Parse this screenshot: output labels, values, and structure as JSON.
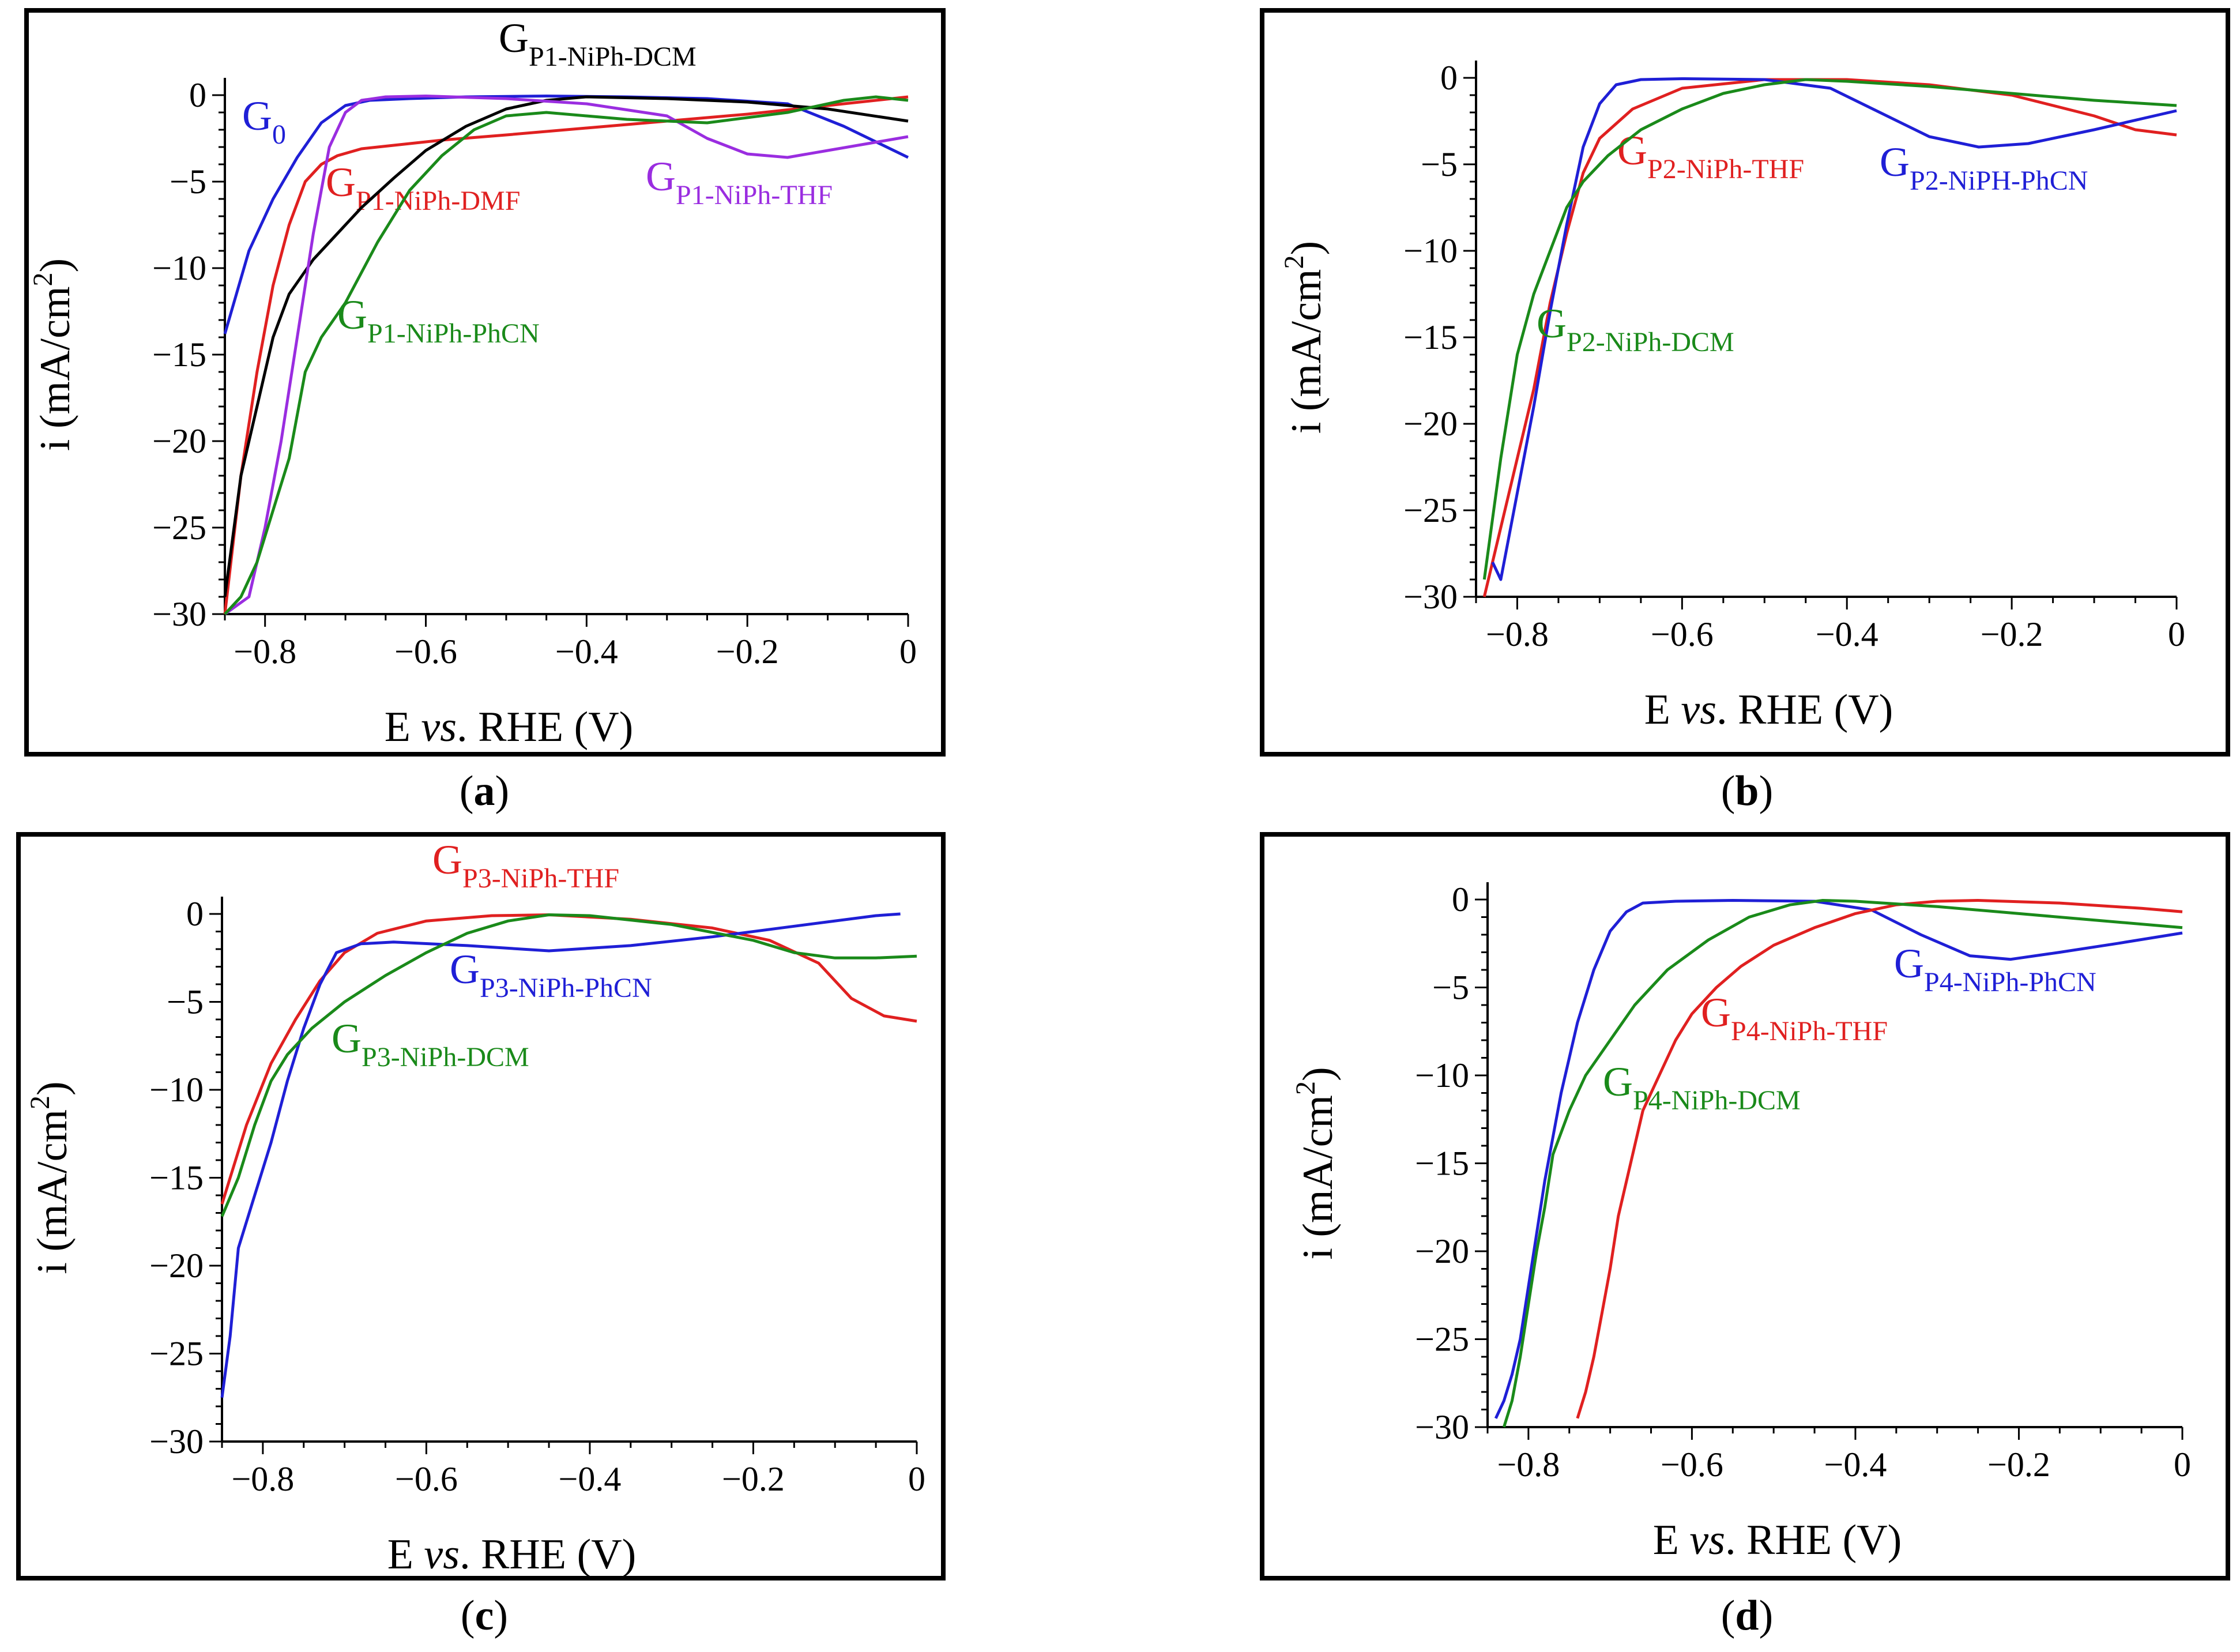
{
  "captions": [
    "a",
    "b",
    "c",
    "d"
  ],
  "axis_text": {
    "x_label_pre": "E ",
    "x_label_italic": "vs",
    "x_label_post": ". RHE (V)",
    "y_label_pre": "i (mA/cm",
    "y_label_sup": "2",
    "y_label_post": ")"
  },
  "colors": {
    "blue": "#1f1fd6",
    "red": "#e02020",
    "green": "#1a8a1a",
    "purple": "#9a2de0",
    "black": "#000000"
  },
  "chart_data": [
    {
      "type": "line",
      "panel": "a",
      "xlim": [
        -0.85,
        0
      ],
      "ylim": [
        -30,
        0
      ],
      "xticks": [
        -0.8,
        -0.6,
        -0.4,
        -0.2,
        0
      ],
      "xtick_labels": [
        "−0.8",
        "−0.6",
        "−0.4",
        "−0.2",
        "0"
      ],
      "yticks": [
        0,
        -5,
        -10,
        -15,
        -20,
        -25,
        -30
      ],
      "ytick_labels": [
        "0",
        "−5",
        "−10",
        "−15",
        "−20",
        "−25",
        "−30"
      ],
      "xlabel": "E vs. RHE (V)",
      "ylabel": "i (mA/cm2)",
      "series": [
        {
          "name": "G0",
          "label_main": "G",
          "label_sub": "0",
          "color": "blue",
          "x": [
            -0.85,
            -0.82,
            -0.79,
            -0.76,
            -0.73,
            -0.7,
            -0.67,
            -0.62,
            -0.55,
            -0.45,
            -0.35,
            -0.25,
            -0.15,
            -0.08,
            0
          ],
          "y": [
            -13.8,
            -9,
            -6,
            -3.6,
            -1.6,
            -0.6,
            -0.3,
            -0.2,
            -0.1,
            -0.05,
            -0.1,
            -0.2,
            -0.5,
            -1.8,
            -3.6
          ]
        },
        {
          "name": "GP1-NiPh-DMF",
          "label_main": "G",
          "label_sub": "P1-NiPh-DMF",
          "color": "red",
          "x": [
            -0.85,
            -0.83,
            -0.81,
            -0.79,
            -0.77,
            -0.75,
            -0.73,
            -0.71,
            -0.68,
            -0.64,
            -0.58,
            -0.5,
            -0.4,
            -0.3,
            -0.2,
            -0.1,
            0
          ],
          "y": [
            -30,
            -22,
            -16,
            -11,
            -7.5,
            -5,
            -4,
            -3.5,
            -3.1,
            -2.9,
            -2.6,
            -2.3,
            -1.9,
            -1.5,
            -1.1,
            -0.6,
            -0.1
          ]
        },
        {
          "name": "GP1-NiPh-DCM",
          "label_main": "G",
          "label_sub": "P1-NiPh-DCM",
          "color": "black",
          "x": [
            -0.85,
            -0.83,
            -0.81,
            -0.79,
            -0.77,
            -0.74,
            -0.71,
            -0.68,
            -0.64,
            -0.6,
            -0.55,
            -0.5,
            -0.45,
            -0.4,
            -0.3,
            -0.2,
            -0.1,
            0
          ],
          "y": [
            -29,
            -22,
            -18,
            -14,
            -11.5,
            -9.5,
            -8,
            -6.5,
            -4.8,
            -3.2,
            -1.8,
            -0.8,
            -0.3,
            -0.1,
            -0.2,
            -0.4,
            -0.8,
            -1.5
          ]
        },
        {
          "name": "GP1-NiPh-THF",
          "label_main": "G",
          "label_sub": "P1-NiPh-THF",
          "color": "purple",
          "x": [
            -0.85,
            -0.82,
            -0.8,
            -0.78,
            -0.76,
            -0.74,
            -0.72,
            -0.7,
            -0.68,
            -0.65,
            -0.6,
            -0.5,
            -0.4,
            -0.3,
            -0.25,
            -0.2,
            -0.15,
            -0.1,
            -0.05,
            0
          ],
          "y": [
            -30,
            -29,
            -25,
            -20,
            -14,
            -8,
            -3,
            -1,
            -0.3,
            -0.1,
            -0.05,
            -0.2,
            -0.5,
            -1.2,
            -2.5,
            -3.4,
            -3.6,
            -3.2,
            -2.8,
            -2.4
          ]
        },
        {
          "name": "GP1-NiPh-PhCN",
          "label_main": "G",
          "label_sub": "P1-NiPh-PhCN",
          "color": "green",
          "x": [
            -0.85,
            -0.83,
            -0.81,
            -0.79,
            -0.77,
            -0.75,
            -0.73,
            -0.7,
            -0.66,
            -0.62,
            -0.58,
            -0.54,
            -0.5,
            -0.45,
            -0.4,
            -0.35,
            -0.25,
            -0.15,
            -0.08,
            -0.04,
            0
          ],
          "y": [
            -30,
            -29,
            -27,
            -24,
            -21,
            -16,
            -14,
            -12,
            -8.5,
            -5.5,
            -3.5,
            -2,
            -1.2,
            -1,
            -1.2,
            -1.4,
            -1.6,
            -1,
            -0.3,
            -0.1,
            -0.3
          ]
        }
      ]
    },
    {
      "type": "line",
      "panel": "b",
      "xlim": [
        -0.85,
        0
      ],
      "ylim": [
        -30,
        0
      ],
      "xticks": [
        -0.8,
        -0.6,
        -0.4,
        -0.2,
        0
      ],
      "xtick_labels": [
        "−0.8",
        "−0.6",
        "−0.4",
        "−0.2",
        "0"
      ],
      "yticks": [
        0,
        -5,
        -10,
        -15,
        -20,
        -25,
        -30
      ],
      "ytick_labels": [
        "0",
        "−5",
        "−10",
        "−15",
        "−20",
        "−25",
        "−30"
      ],
      "xlabel": "E vs. RHE (V)",
      "ylabel": "i (mA/cm2)",
      "series": [
        {
          "name": "GP2-NiPh-THF",
          "label_main": "G",
          "label_sub": "P2-NiPh-THF",
          "color": "red",
          "x": [
            -0.84,
            -0.82,
            -0.8,
            -0.78,
            -0.76,
            -0.74,
            -0.72,
            -0.7,
            -0.66,
            -0.6,
            -0.5,
            -0.4,
            -0.3,
            -0.2,
            -0.1,
            -0.05,
            0
          ],
          "y": [
            -30,
            -26,
            -22,
            -18,
            -13,
            -9,
            -5.5,
            -3.5,
            -1.8,
            -0.6,
            -0.1,
            -0.1,
            -0.4,
            -1,
            -2.2,
            -3,
            -3.3
          ]
        },
        {
          "name": "GP2-NiPH-PhCN",
          "label_main": "G",
          "label_sub": "P2-NiPH-PhCN",
          "color": "blue",
          "x": [
            -0.83,
            -0.82,
            -0.8,
            -0.78,
            -0.76,
            -0.74,
            -0.72,
            -0.7,
            -0.68,
            -0.65,
            -0.6,
            -0.5,
            -0.42,
            -0.36,
            -0.3,
            -0.24,
            -0.18,
            -0.1,
            0
          ],
          "y": [
            -28,
            -29,
            -24,
            -19,
            -13.5,
            -8.5,
            -4,
            -1.5,
            -0.4,
            -0.1,
            -0.05,
            -0.1,
            -0.6,
            -2,
            -3.4,
            -4,
            -3.8,
            -3,
            -1.9
          ]
        },
        {
          "name": "GP2-NiPh-DCM",
          "label_main": "G",
          "label_sub": "P2-NiPh-DCM",
          "color": "green",
          "x": [
            -0.84,
            -0.82,
            -0.8,
            -0.78,
            -0.76,
            -0.74,
            -0.72,
            -0.69,
            -0.65,
            -0.6,
            -0.55,
            -0.5,
            -0.45,
            -0.4,
            -0.3,
            -0.2,
            -0.1,
            0
          ],
          "y": [
            -29,
            -22,
            -16,
            -12.5,
            -10,
            -7.5,
            -6,
            -4.5,
            -3,
            -1.8,
            -0.9,
            -0.4,
            -0.1,
            -0.2,
            -0.5,
            -0.9,
            -1.3,
            -1.6
          ]
        }
      ]
    },
    {
      "type": "line",
      "panel": "c",
      "xlim": [
        -0.85,
        0
      ],
      "ylim": [
        -30,
        0
      ],
      "xticks": [
        -0.8,
        -0.6,
        -0.4,
        -0.2,
        0
      ],
      "xtick_labels": [
        "−0.8",
        "−0.6",
        "−0.4",
        "−0.2",
        "0"
      ],
      "yticks": [
        0,
        -5,
        -10,
        -15,
        -20,
        -25,
        -30
      ],
      "ytick_labels": [
        "0",
        "−5",
        "−10",
        "−15",
        "−20",
        "−25",
        "−30"
      ],
      "xlabel": "E vs. RHE (V)",
      "ylabel": "i (mA/cm2)",
      "series": [
        {
          "name": "GP3-NiPh-THF",
          "label_main": "G",
          "label_sub": "P3-NiPh-THF",
          "color": "red",
          "x": [
            -0.85,
            -0.82,
            -0.79,
            -0.76,
            -0.73,
            -0.7,
            -0.66,
            -0.6,
            -0.52,
            -0.45,
            -0.35,
            -0.25,
            -0.18,
            -0.12,
            -0.08,
            -0.04,
            0
          ],
          "y": [
            -16.5,
            -12,
            -8.5,
            -6,
            -3.8,
            -2.2,
            -1.1,
            -0.4,
            -0.1,
            -0.05,
            -0.3,
            -0.8,
            -1.5,
            -2.8,
            -4.8,
            -5.8,
            -6.1
          ]
        },
        {
          "name": "GP3-NiPh-PhCN",
          "label_main": "G",
          "label_sub": "P3-NiPh-PhCN",
          "color": "blue",
          "x": [
            -0.85,
            -0.84,
            -0.83,
            -0.81,
            -0.79,
            -0.77,
            -0.75,
            -0.73,
            -0.71,
            -0.68,
            -0.64,
            -0.55,
            -0.45,
            -0.35,
            -0.25,
            -0.15,
            -0.05,
            -0.02
          ],
          "y": [
            -27.5,
            -24,
            -19,
            -16,
            -13,
            -9.5,
            -6.5,
            -4,
            -2.2,
            -1.7,
            -1.6,
            -1.8,
            -2.1,
            -1.8,
            -1.3,
            -0.7,
            -0.1,
            0
          ]
        },
        {
          "name": "GP3-NiPh-DCM",
          "label_main": "G",
          "label_sub": "P3-NiPh-DCM",
          "color": "green",
          "x": [
            -0.85,
            -0.83,
            -0.81,
            -0.79,
            -0.77,
            -0.74,
            -0.7,
            -0.65,
            -0.6,
            -0.55,
            -0.5,
            -0.45,
            -0.4,
            -0.3,
            -0.2,
            -0.15,
            -0.1,
            -0.05,
            0
          ],
          "y": [
            -17.2,
            -15,
            -12,
            -9.5,
            -8,
            -6.5,
            -5,
            -3.5,
            -2.2,
            -1.1,
            -0.4,
            -0.05,
            -0.1,
            -0.6,
            -1.5,
            -2.2,
            -2.5,
            -2.5,
            -2.4
          ]
        }
      ]
    },
    {
      "type": "line",
      "panel": "d",
      "xlim": [
        -0.85,
        0
      ],
      "ylim": [
        -30,
        0
      ],
      "xticks": [
        -0.8,
        -0.6,
        -0.4,
        -0.2,
        0
      ],
      "xtick_labels": [
        "−0.8",
        "−0.6",
        "−0.4",
        "−0.2",
        "0"
      ],
      "yticks": [
        0,
        -5,
        -10,
        -15,
        -20,
        -25,
        -30
      ],
      "ytick_labels": [
        "0",
        "−5",
        "−10",
        "−15",
        "−20",
        "−25",
        "−30"
      ],
      "xlabel": "E vs. RHE (V)",
      "ylabel": "i (mA/cm2)",
      "series": [
        {
          "name": "GP4-NiPh-PhCN",
          "label_main": "G",
          "label_sub": "P4-NiPh-PhCN",
          "color": "blue",
          "x": [
            -0.84,
            -0.83,
            -0.82,
            -0.81,
            -0.8,
            -0.79,
            -0.78,
            -0.77,
            -0.76,
            -0.74,
            -0.72,
            -0.7,
            -0.68,
            -0.66,
            -0.62,
            -0.55,
            -0.45,
            -0.38,
            -0.32,
            -0.26,
            -0.21,
            -0.15,
            -0.08,
            0
          ],
          "y": [
            -29.5,
            -28.5,
            -27,
            -25,
            -22,
            -19,
            -16,
            -13.5,
            -11,
            -7,
            -4,
            -1.8,
            -0.7,
            -0.2,
            -0.1,
            -0.05,
            -0.1,
            -0.6,
            -2,
            -3.2,
            -3.4,
            -3,
            -2.5,
            -1.9
          ]
        },
        {
          "name": "GP4-NiPh-THF",
          "label_main": "G",
          "label_sub": "P4-NiPh-THF",
          "color": "red",
          "x": [
            -0.74,
            -0.73,
            -0.72,
            -0.71,
            -0.7,
            -0.69,
            -0.68,
            -0.67,
            -0.66,
            -0.64,
            -0.62,
            -0.6,
            -0.57,
            -0.54,
            -0.5,
            -0.45,
            -0.4,
            -0.35,
            -0.3,
            -0.25,
            -0.15,
            -0.05,
            0
          ],
          "y": [
            -29.5,
            -28,
            -26,
            -23.5,
            -21,
            -18,
            -16,
            -14,
            -12,
            -10,
            -8,
            -6.5,
            -5,
            -3.8,
            -2.6,
            -1.6,
            -0.8,
            -0.3,
            -0.1,
            -0.05,
            -0.2,
            -0.5,
            -0.7
          ]
        },
        {
          "name": "GP4-NiPh-DCM",
          "label_main": "G",
          "label_sub": "P4-NiPh-DCM",
          "color": "green",
          "x": [
            -0.83,
            -0.82,
            -0.81,
            -0.8,
            -0.79,
            -0.78,
            -0.77,
            -0.75,
            -0.73,
            -0.7,
            -0.67,
            -0.63,
            -0.58,
            -0.53,
            -0.48,
            -0.44,
            -0.4,
            -0.3,
            -0.2,
            -0.1,
            0
          ],
          "y": [
            -30,
            -28.5,
            -26,
            -23,
            -20,
            -17.5,
            -14.5,
            -12,
            -10,
            -8,
            -6,
            -4,
            -2.3,
            -1,
            -0.3,
            -0.05,
            -0.1,
            -0.4,
            -0.8,
            -1.2,
            -1.6
          ]
        }
      ]
    }
  ]
}
